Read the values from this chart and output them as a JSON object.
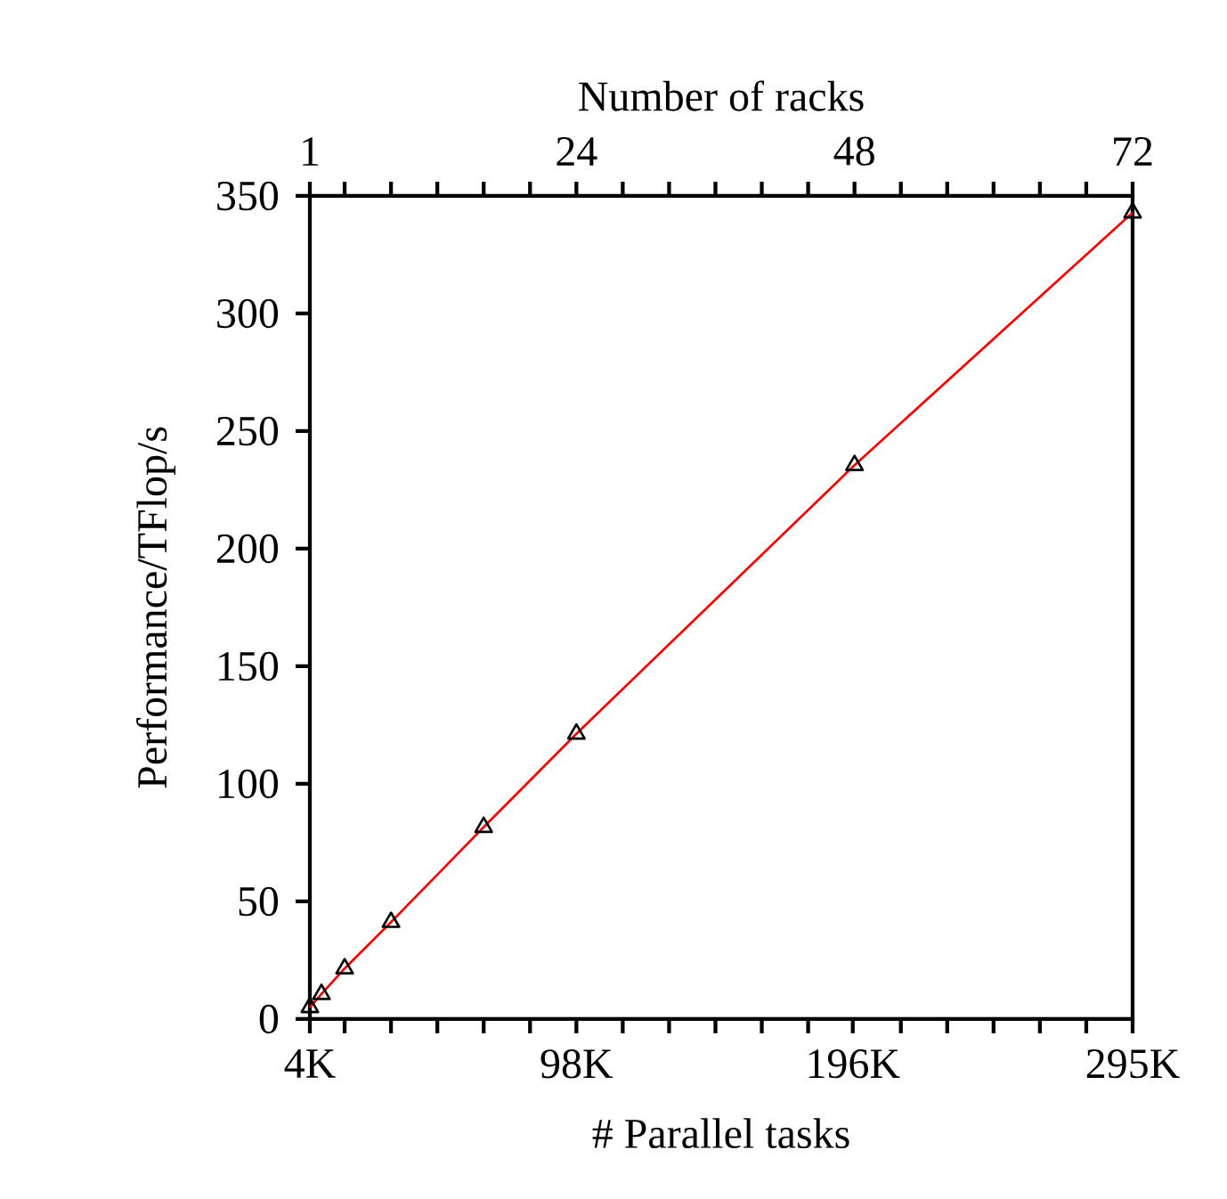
{
  "chart_data": {
    "type": "line",
    "xlabel": "# Parallel tasks",
    "x2label": "Number of racks",
    "ylabel": "Performance/TFlop/s",
    "x": [
      4.096,
      8.192,
      16.384,
      32.768,
      65.536,
      98.304,
      196.608,
      294.912
    ],
    "series": [
      {
        "color": "#ff0000",
        "values": [
          5.0,
          10.6,
          21.5,
          41.2,
          81.6,
          121.3,
          235.5,
          342.9
        ]
      }
    ],
    "marker": "triangle",
    "line_style": "solid",
    "grid": false,
    "xlim": [
      4.096,
      294.912
    ],
    "xticks": [
      {
        "value": 4.096,
        "label": "4K"
      },
      {
        "value": 16.384,
        "label": null
      },
      {
        "value": 32.768,
        "label": null
      },
      {
        "value": 49.152,
        "label": null
      },
      {
        "value": 65.536,
        "label": null
      },
      {
        "value": 81.92,
        "label": null
      },
      {
        "value": 98.304,
        "label": "98K"
      },
      {
        "value": 114.688,
        "label": null
      },
      {
        "value": 131.072,
        "label": null
      },
      {
        "value": 147.456,
        "label": null
      },
      {
        "value": 163.84,
        "label": null
      },
      {
        "value": 180.224,
        "label": null
      },
      {
        "value": 196,
        "label": "196K"
      },
      {
        "value": 212.992,
        "label": null
      },
      {
        "value": 229.376,
        "label": null
      },
      {
        "value": 245.76,
        "label": null
      },
      {
        "value": 262.144,
        "label": null
      },
      {
        "value": 278.528,
        "label": null
      },
      {
        "value": 294.912,
        "label": "295K"
      }
    ],
    "x2lim": [
      1,
      72
    ],
    "x2ticks": [
      1,
      {
        "value": 4,
        "label": null
      },
      {
        "value": 8,
        "label": null
      },
      {
        "value": 12,
        "label": null
      },
      {
        "value": 16,
        "label": null
      },
      {
        "value": 20,
        "label": null
      },
      24,
      {
        "value": 28,
        "label": null
      },
      {
        "value": 32,
        "label": null
      },
      {
        "value": 36,
        "label": null
      },
      {
        "value": 40,
        "label": null
      },
      {
        "value": 44,
        "label": null
      },
      48,
      {
        "value": 52,
        "label": null
      },
      {
        "value": 56,
        "label": null
      },
      {
        "value": 60,
        "label": null
      },
      {
        "value": 64,
        "label": null
      },
      {
        "value": 68,
        "label": null
      },
      72
    ],
    "ylim": [
      0,
      350
    ],
    "yticks": [
      0,
      50,
      100,
      150,
      200,
      250,
      300,
      350
    ]
  }
}
